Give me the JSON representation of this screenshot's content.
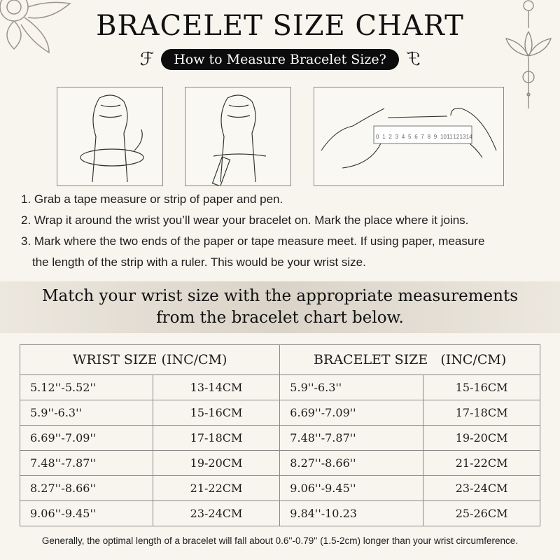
{
  "title": "BRACELET SIZE CHART",
  "subtitle": "How to Measure Bracelet Size?",
  "ruler_labels": [
    "0",
    "1",
    "2",
    "3",
    "4",
    "5",
    "6",
    "7",
    "8",
    "9",
    "10",
    "11",
    "12",
    "13",
    "14"
  ],
  "steps": [
    "1. Grab a tape measure or strip of paper and pen.",
    "2. Wrap it around the wrist you’ll wear your bracelet on. Mark the place where it joins.",
    "3. Mark where the two ends of the paper or tape measure meet. If using paper, measure",
    "the length of the strip with a ruler. This would be your wrist size."
  ],
  "band": {
    "line1": "Match your wrist size with the appropriate measurements",
    "line2": "from the bracelet chart below."
  },
  "table": {
    "headers": [
      "WRIST SIZE (INC/CM)",
      "BRACELET SIZE   (INC/CM)"
    ],
    "rows": [
      [
        "5.12''-5.52''",
        "13-14CM",
        "5.9''-6.3''",
        "15-16CM"
      ],
      [
        "5.9''-6.3''",
        "15-16CM",
        "6.69''-7.09''",
        "17-18CM"
      ],
      [
        "6.69''-7.09''",
        "17-18CM",
        "7.48''-7.87''",
        "19-20CM"
      ],
      [
        "7.48''-7.87''",
        "19-20CM",
        "8.27''-8.66''",
        "21-22CM"
      ],
      [
        "8.27''-8.66''",
        "21-22CM",
        "9.06''-9.45''",
        "23-24CM"
      ],
      [
        "9.06''-9.45''",
        "23-24CM",
        "9.84''-10.23",
        "25-26CM"
      ]
    ]
  },
  "footnote": "Generally, the optimal length of a bracelet will fall about 0.6''-0.79'' (1.5-2cm) longer than your wrist circumference."
}
